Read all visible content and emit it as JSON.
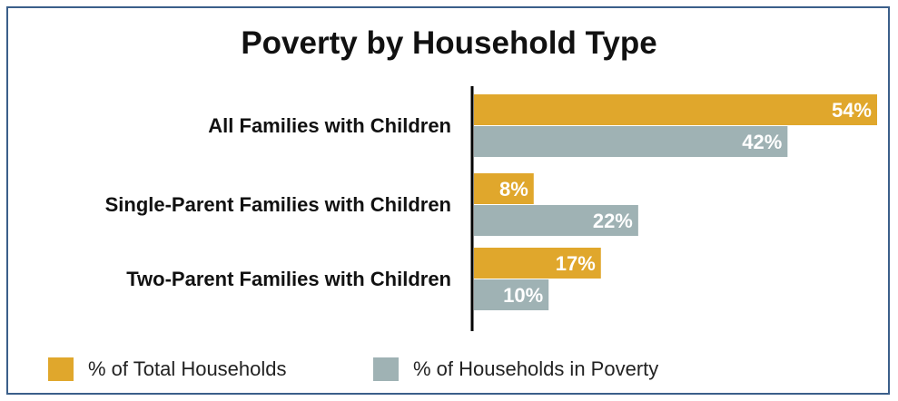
{
  "chart_data": {
    "type": "bar",
    "orientation": "horizontal",
    "title": "Poverty by Household Type",
    "categories": [
      "All Families with Children",
      "Single-Parent Families with Children",
      "Two-Parent Families with Children"
    ],
    "series": [
      {
        "name": "% of  Total Households",
        "values": [
          54,
          8,
          17
        ],
        "color": "#e0a72c"
      },
      {
        "name": "% of Households in Poverty",
        "values": [
          42,
          22,
          10
        ],
        "color": "#9fb2b4"
      }
    ],
    "value_suffix": "%",
    "xlim": [
      0,
      54
    ],
    "grid": false,
    "legend_position": "bottom-left"
  }
}
